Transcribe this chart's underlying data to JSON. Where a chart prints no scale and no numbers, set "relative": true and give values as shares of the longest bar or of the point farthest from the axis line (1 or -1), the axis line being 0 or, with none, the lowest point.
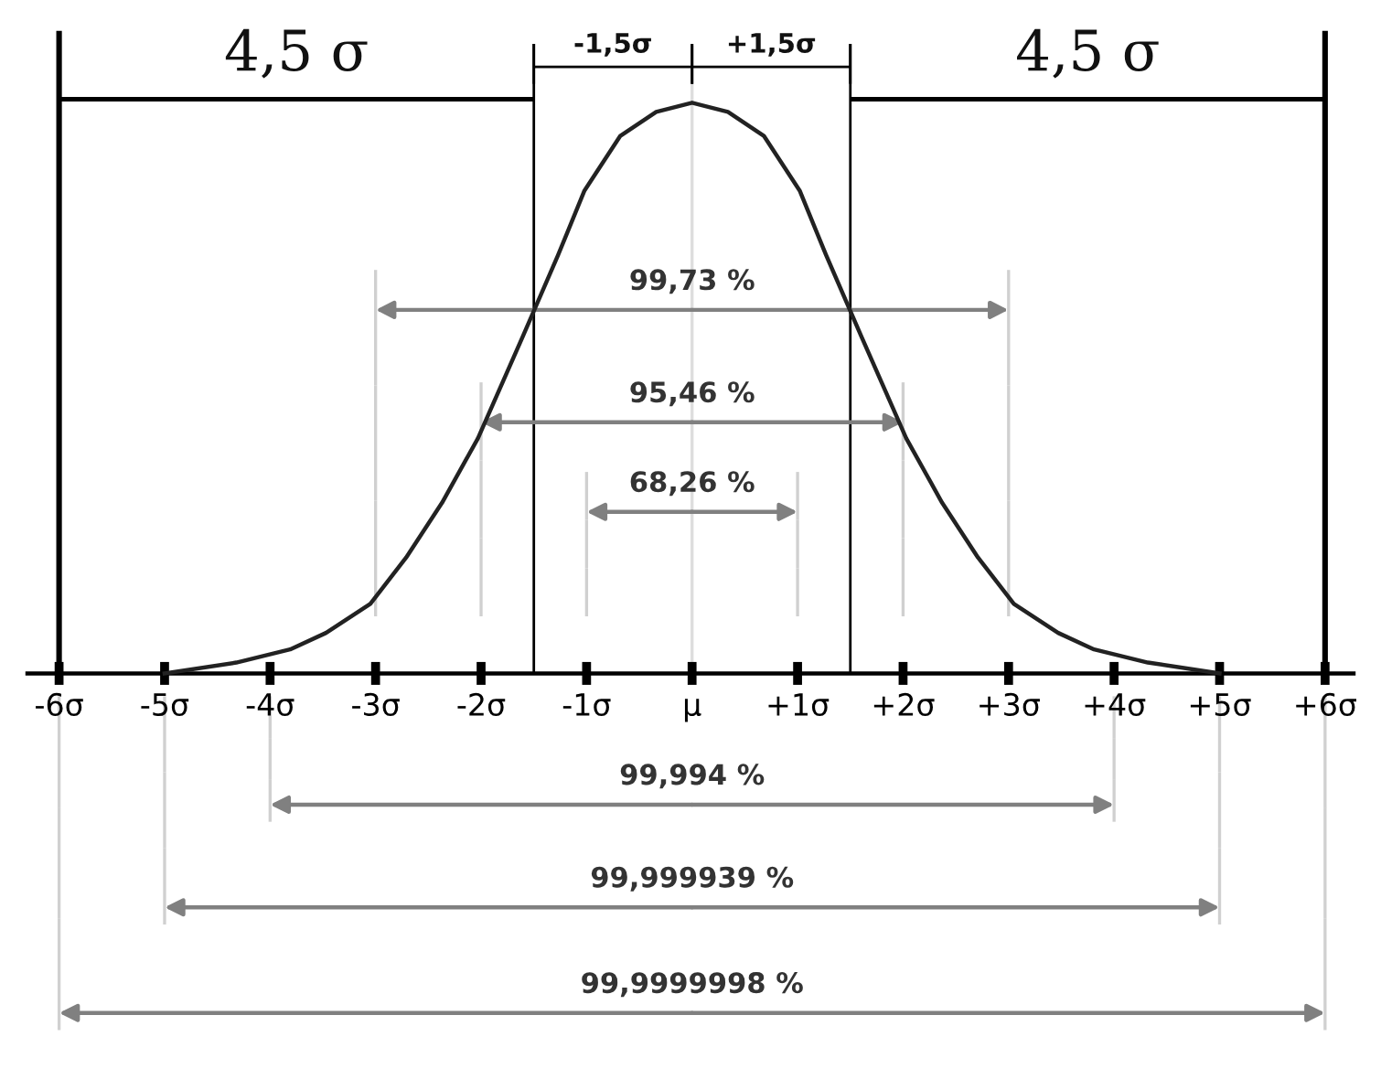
{
  "chart_data": {
    "type": "line",
    "relative": true,
    "x": [
      -5.0,
      -4.32,
      -3.81,
      -3.47,
      -3.05,
      -2.71,
      -2.37,
      -2.03,
      -1.61,
      -1.27,
      -1.02,
      -0.68,
      -0.34,
      0,
      0.34,
      0.68,
      1.02,
      1.27,
      1.61,
      2.03,
      2.37,
      2.71,
      3.05,
      3.47,
      3.81,
      4.32,
      5.0
    ],
    "series": [
      {
        "color": "#222222",
        "values": [
          0,
          0.019,
          0.042,
          0.071,
          0.122,
          0.203,
          0.299,
          0.412,
          0.588,
          0.733,
          0.846,
          0.942,
          0.984,
          1,
          0.984,
          0.942,
          0.846,
          0.733,
          0.588,
          0.412,
          0.299,
          0.203,
          0.122,
          0.071,
          0.042,
          0.019,
          0
        ]
      }
    ],
    "xlim": [
      -6.3,
      6.27
    ],
    "xticks": [
      {
        "value": -6,
        "label": "-6σ"
      },
      {
        "value": -5,
        "label": "-5σ"
      },
      {
        "value": -4,
        "label": "-4σ"
      },
      {
        "value": -3,
        "label": "-3σ"
      },
      {
        "value": -2,
        "label": "-2σ"
      },
      {
        "value": -1,
        "label": "-1σ"
      },
      {
        "value": 0,
        "label": "μ"
      },
      {
        "value": 1,
        "label": "+1σ"
      },
      {
        "value": 2,
        "label": "+2σ"
      },
      {
        "value": 3,
        "label": "+3σ"
      },
      {
        "value": 4,
        "label": "+4σ"
      },
      {
        "value": 5,
        "label": "+5σ"
      },
      {
        "value": 6,
        "label": "+6σ"
      }
    ],
    "tick_labels": "x",
    "grid": false,
    "legend": false,
    "ref_lines": [
      {
        "axis": "x",
        "value": -6,
        "color": "#000000"
      },
      {
        "axis": "x",
        "value": -1.5,
        "color": "#000000"
      },
      {
        "axis": "x",
        "value": 0,
        "color": "#dddddd"
      },
      {
        "axis": "x",
        "value": 1.5,
        "color": "#000000"
      },
      {
        "axis": "x",
        "value": 6,
        "color": "#000000"
      }
    ],
    "annotations": [
      "99,73 %",
      "95,46 %",
      "68,26 %",
      "99,994 %",
      "99,999939 %",
      "99,9999998 %",
      "4,5 σ",
      "4,5 σ",
      "-1,5σ",
      "+1,5σ"
    ]
  }
}
